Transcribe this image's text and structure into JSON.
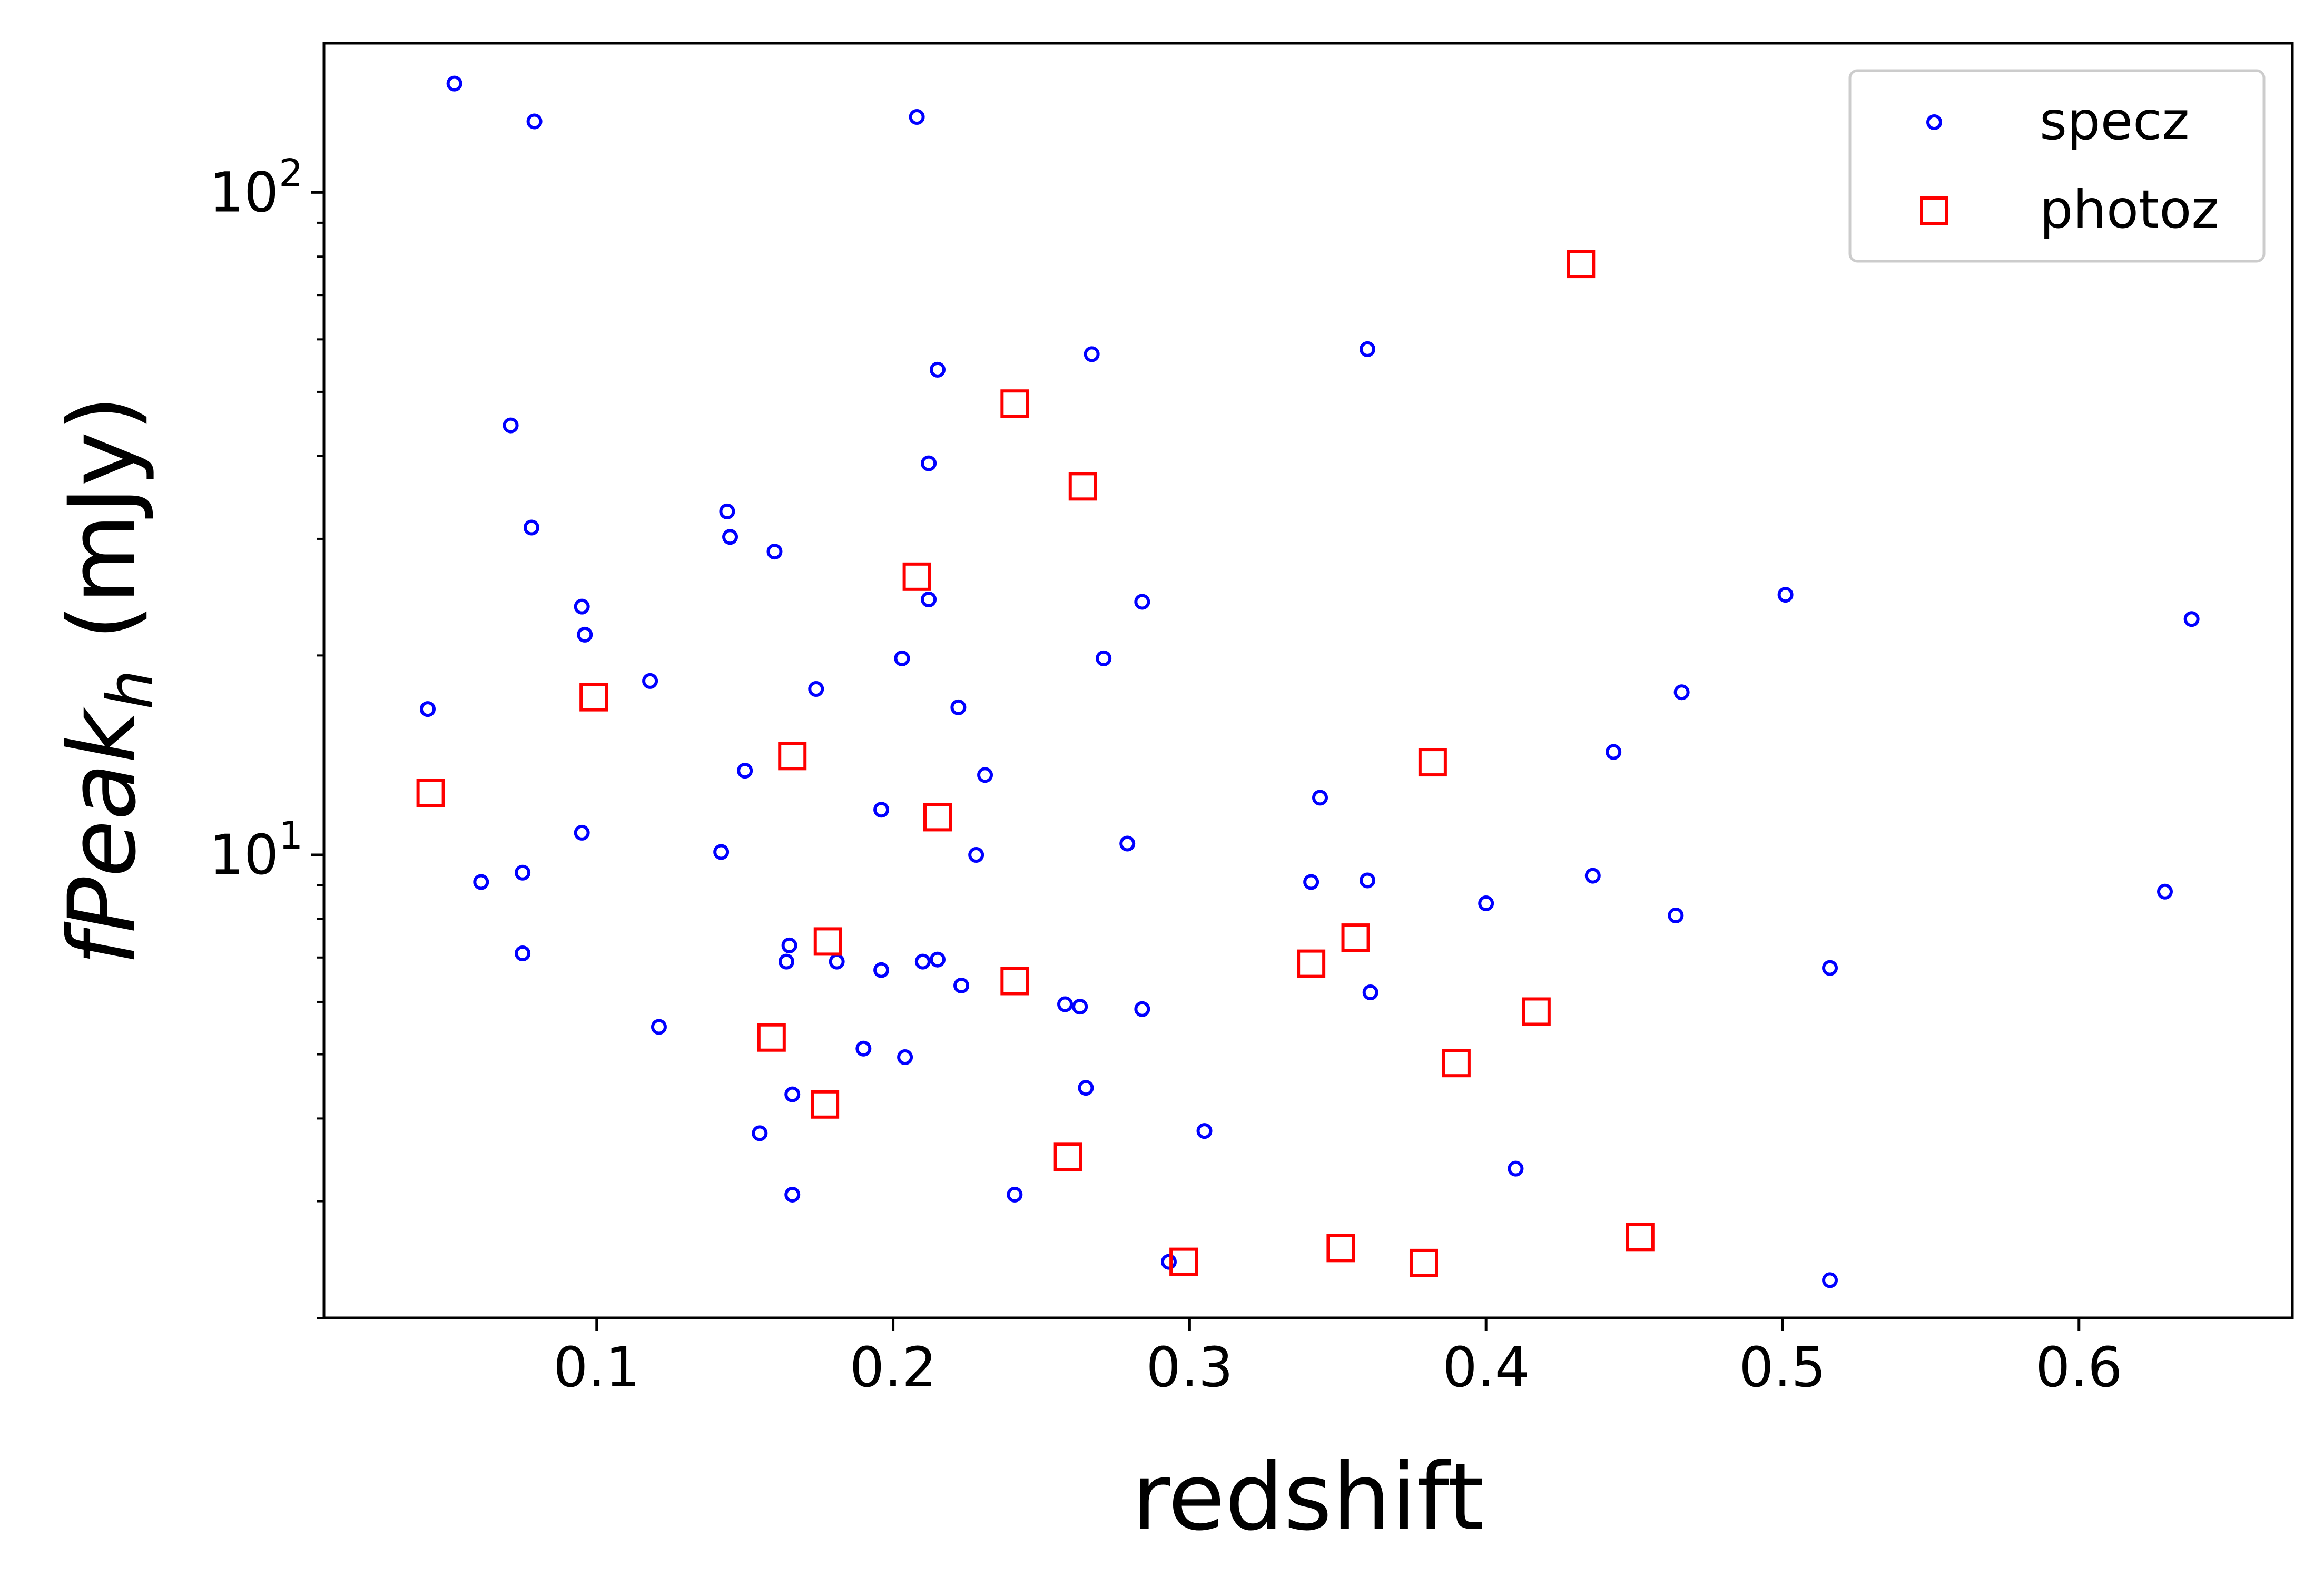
{
  "chart_data": {
    "type": "scatter",
    "xlabel": "redshift",
    "ylabel": {
      "italic": "fPeak",
      "subscript": "h",
      "unit": " (mJy)"
    },
    "xlim": [
      0.008,
      0.672
    ],
    "ylim": [
      2.0,
      168
    ],
    "y_scale": "log",
    "x_ticks": [
      {
        "value": 0.1,
        "label": "0.1"
      },
      {
        "value": 0.2,
        "label": "0.2"
      },
      {
        "value": 0.3,
        "label": "0.3"
      },
      {
        "value": 0.4,
        "label": "0.4"
      },
      {
        "value": 0.5,
        "label": "0.5"
      },
      {
        "value": 0.6,
        "label": "0.6"
      }
    ],
    "y_ticks": [
      {
        "value": 10,
        "base": "10",
        "exp": "1"
      },
      {
        "value": 100,
        "base": "10",
        "exp": "2"
      }
    ],
    "grid": false,
    "legend": "top-right",
    "series": [
      {
        "name": "specz",
        "marker": "circle",
        "color": "#0000ff",
        "points": [
          {
            "x": 0.052,
            "y": 146
          },
          {
            "x": 0.079,
            "y": 128
          },
          {
            "x": 0.208,
            "y": 130
          },
          {
            "x": 0.215,
            "y": 54
          },
          {
            "x": 0.267,
            "y": 57
          },
          {
            "x": 0.36,
            "y": 58
          },
          {
            "x": 0.071,
            "y": 44.5
          },
          {
            "x": 0.212,
            "y": 39
          },
          {
            "x": 0.144,
            "y": 33
          },
          {
            "x": 0.145,
            "y": 30.2
          },
          {
            "x": 0.078,
            "y": 31.2
          },
          {
            "x": 0.16,
            "y": 28.7
          },
          {
            "x": 0.095,
            "y": 23.7
          },
          {
            "x": 0.096,
            "y": 21.5
          },
          {
            "x": 0.212,
            "y": 24.3
          },
          {
            "x": 0.284,
            "y": 24.1
          },
          {
            "x": 0.501,
            "y": 24.7
          },
          {
            "x": 0.638,
            "y": 22.7
          },
          {
            "x": 0.203,
            "y": 19.8
          },
          {
            "x": 0.271,
            "y": 19.8
          },
          {
            "x": 0.118,
            "y": 18.3
          },
          {
            "x": 0.174,
            "y": 17.8
          },
          {
            "x": 0.466,
            "y": 17.6
          },
          {
            "x": 0.043,
            "y": 16.6
          },
          {
            "x": 0.222,
            "y": 16.7
          },
          {
            "x": 0.443,
            "y": 14.3
          },
          {
            "x": 0.15,
            "y": 13.4
          },
          {
            "x": 0.231,
            "y": 13.2
          },
          {
            "x": 0.344,
            "y": 12.2
          },
          {
            "x": 0.196,
            "y": 11.7
          },
          {
            "x": 0.095,
            "y": 10.8
          },
          {
            "x": 0.279,
            "y": 10.4
          },
          {
            "x": 0.142,
            "y": 10.1
          },
          {
            "x": 0.228,
            "y": 10.0
          },
          {
            "x": 0.075,
            "y": 9.4
          },
          {
            "x": 0.061,
            "y": 9.1
          },
          {
            "x": 0.341,
            "y": 9.1
          },
          {
            "x": 0.36,
            "y": 9.15
          },
          {
            "x": 0.436,
            "y": 9.3
          },
          {
            "x": 0.629,
            "y": 8.8
          },
          {
            "x": 0.4,
            "y": 8.45
          },
          {
            "x": 0.464,
            "y": 8.1
          },
          {
            "x": 0.075,
            "y": 7.1
          },
          {
            "x": 0.165,
            "y": 7.3
          },
          {
            "x": 0.164,
            "y": 6.9
          },
          {
            "x": 0.181,
            "y": 6.9
          },
          {
            "x": 0.196,
            "y": 6.7
          },
          {
            "x": 0.21,
            "y": 6.9
          },
          {
            "x": 0.215,
            "y": 6.95
          },
          {
            "x": 0.223,
            "y": 6.35
          },
          {
            "x": 0.361,
            "y": 6.2
          },
          {
            "x": 0.516,
            "y": 6.75
          },
          {
            "x": 0.258,
            "y": 5.95
          },
          {
            "x": 0.263,
            "y": 5.9
          },
          {
            "x": 0.284,
            "y": 5.85
          },
          {
            "x": 0.121,
            "y": 5.5
          },
          {
            "x": 0.19,
            "y": 5.1
          },
          {
            "x": 0.204,
            "y": 4.95
          },
          {
            "x": 0.166,
            "y": 4.35
          },
          {
            "x": 0.265,
            "y": 4.45
          },
          {
            "x": 0.155,
            "y": 3.8
          },
          {
            "x": 0.305,
            "y": 3.83
          },
          {
            "x": 0.41,
            "y": 3.36
          },
          {
            "x": 0.166,
            "y": 3.07
          },
          {
            "x": 0.241,
            "y": 3.07
          },
          {
            "x": 0.293,
            "y": 2.43
          },
          {
            "x": 0.516,
            "y": 2.28
          }
        ]
      },
      {
        "name": "photoz",
        "marker": "square",
        "color": "#ff0000",
        "points": [
          {
            "x": 0.432,
            "y": 78
          },
          {
            "x": 0.241,
            "y": 48
          },
          {
            "x": 0.264,
            "y": 36
          },
          {
            "x": 0.208,
            "y": 26.3
          },
          {
            "x": 0.099,
            "y": 17.3
          },
          {
            "x": 0.166,
            "y": 14.1
          },
          {
            "x": 0.382,
            "y": 13.8
          },
          {
            "x": 0.044,
            "y": 12.4
          },
          {
            "x": 0.215,
            "y": 11.4
          },
          {
            "x": 0.178,
            "y": 7.4
          },
          {
            "x": 0.356,
            "y": 7.5
          },
          {
            "x": 0.341,
            "y": 6.85
          },
          {
            "x": 0.241,
            "y": 6.45
          },
          {
            "x": 0.417,
            "y": 5.8
          },
          {
            "x": 0.159,
            "y": 5.3
          },
          {
            "x": 0.39,
            "y": 4.85
          },
          {
            "x": 0.177,
            "y": 4.2
          },
          {
            "x": 0.259,
            "y": 3.5
          },
          {
            "x": 0.452,
            "y": 2.65
          },
          {
            "x": 0.351,
            "y": 2.55
          },
          {
            "x": 0.298,
            "y": 2.43
          },
          {
            "x": 0.379,
            "y": 2.42
          }
        ]
      }
    ]
  }
}
